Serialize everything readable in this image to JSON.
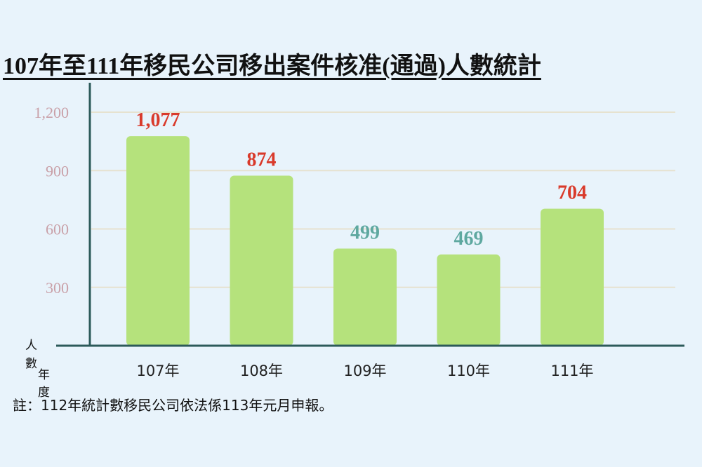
{
  "title": "107年至111年移民公司移出案件核准(通過)人數統計",
  "note": "註：112年統計數移民公司依法係113年元月申報。",
  "axis_labels": {
    "y_chars": [
      "人",
      "數"
    ],
    "x_chars": [
      "年",
      "度"
    ]
  },
  "colors": {
    "background": "#e8f3fb",
    "bar": "#b5e27c",
    "axis": "#2c5a5a",
    "grid": "#e6e2cf",
    "ytick": "#c9a0a8",
    "label_red": "#d93a2b",
    "label_teal": "#5ea8a0"
  },
  "chart_data": {
    "type": "bar",
    "title": "107年至111年移民公司移出案件核准(通過)人數統計",
    "categories": [
      "107年",
      "108年",
      "109年",
      "110年",
      "111年"
    ],
    "values": [
      1077,
      874,
      499,
      469,
      704
    ],
    "value_labels": [
      "1,077",
      "874",
      "499",
      "469",
      "704"
    ],
    "value_label_colors": [
      "red",
      "red",
      "teal",
      "teal",
      "red"
    ],
    "yticks": [
      300,
      600,
      900,
      1200
    ],
    "ytick_labels": [
      "300",
      "600",
      "900",
      "1,200"
    ],
    "ylim": [
      0,
      1200
    ],
    "xlabel": "年度",
    "ylabel": "人數",
    "grid": true,
    "legend": "none"
  }
}
